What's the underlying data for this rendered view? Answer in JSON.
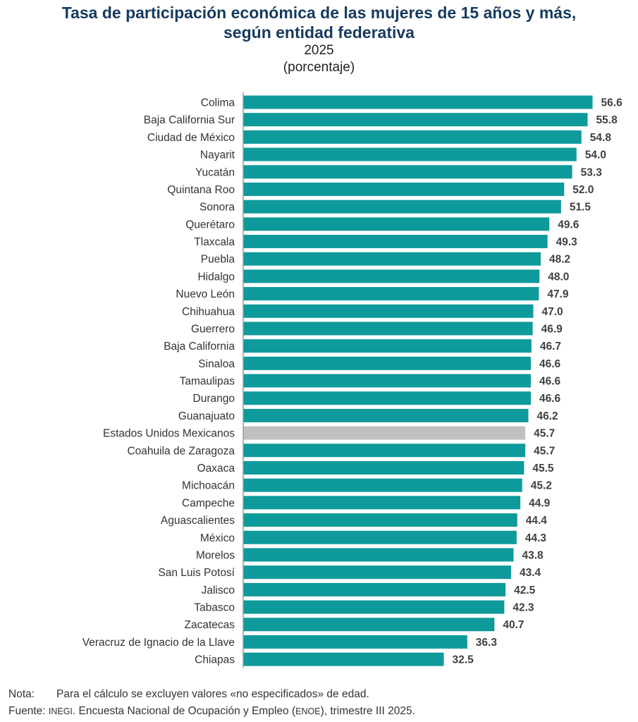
{
  "chart_data": {
    "type": "bar",
    "orientation": "horizontal",
    "title": "Tasa de participación económica de las mujeres de 15 años y más, según entidad federativa",
    "title_line1": "Tasa de participación económica de las mujeres de 15 años y más,",
    "title_line2": "según entidad federativa",
    "subtitle_year": "2025",
    "unit": "(porcentaje)",
    "xlim": [
      0,
      58
    ],
    "grid": false,
    "colors": {
      "bar": "#0e9a9a",
      "highlight": "#c0c0c0",
      "title": "#173a5e",
      "value": "#404040"
    },
    "highlight_category": "Estados Unidos Mexicanos",
    "categories": [
      "Colima",
      "Baja California Sur",
      "Ciudad de México",
      "Nayarit",
      "Yucatán",
      "Quintana Roo",
      "Sonora",
      "Querétaro",
      "Tlaxcala",
      "Puebla",
      "Hidalgo",
      "Nuevo León",
      "Chihuahua",
      "Guerrero",
      "Baja California",
      "Sinaloa",
      "Tamaulipas",
      "Durango",
      "Guanajuato",
      "Estados Unidos Mexicanos",
      "Coahuila de Zaragoza",
      "Oaxaca",
      "Michoacán",
      "Campeche",
      "Aguascalientes",
      "México",
      "Morelos",
      "San Luis Potosí",
      "Jalisco",
      "Tabasco",
      "Zacatecas",
      "Veracruz de Ignacio de la Llave",
      "Chiapas"
    ],
    "values": [
      56.6,
      55.8,
      54.8,
      54.0,
      53.3,
      52.0,
      51.5,
      49.6,
      49.3,
      48.2,
      48.0,
      47.9,
      47.0,
      46.9,
      46.7,
      46.6,
      46.6,
      46.6,
      46.2,
      45.7,
      45.7,
      45.5,
      45.2,
      44.9,
      44.4,
      44.3,
      43.8,
      43.4,
      42.5,
      42.3,
      40.7,
      36.3,
      32.5
    ]
  },
  "notes": {
    "nota_label": "Nota:",
    "nota_text": "Para el cálculo se excluyen valores «no especificados» de edad.",
    "fuente_label": "Fuente:",
    "fuente_inegi": "INEGI",
    "fuente_text1": ". Encuesta Nacional de Ocupación y Empleo (",
    "fuente_enoe": "ENOE",
    "fuente_text2": "), trimestre III 2025."
  }
}
